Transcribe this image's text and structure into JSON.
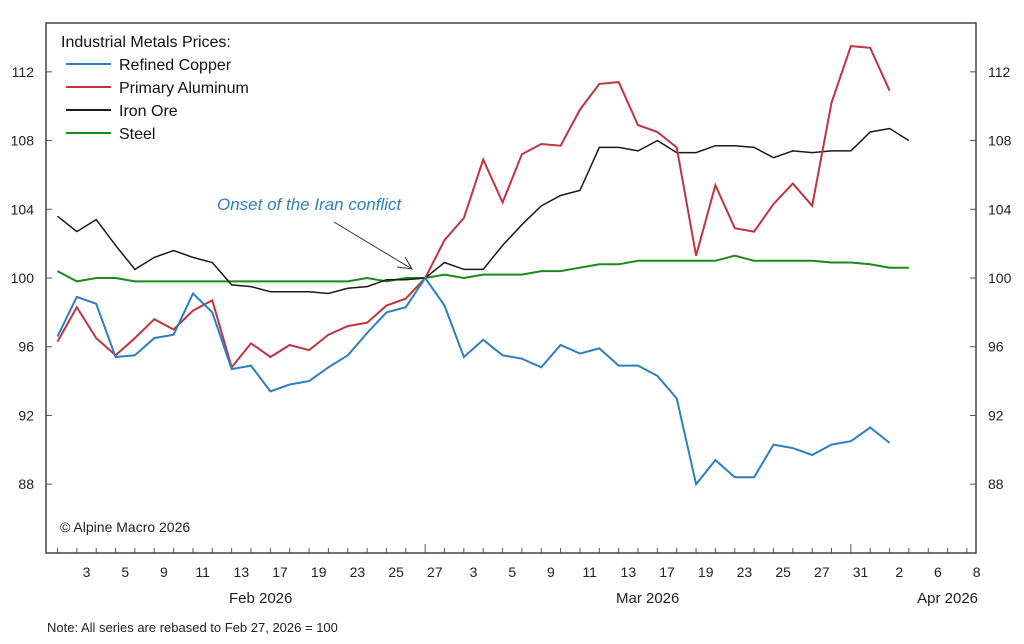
{
  "chart_data": {
    "type": "line",
    "title": "Industrial Metals Prices:",
    "annotation": "Onset of the Iran conflict",
    "annotation_point_index": 19,
    "copyright": "© Alpine Macro 2026",
    "note": "Note: All series are rebased to Feb 27, 2026 = 100",
    "xlabel": "",
    "ylabel": "",
    "ylim": [
      84.5,
      115
    ],
    "y_ticks": [
      88,
      92,
      96,
      100,
      104,
      108,
      112
    ],
    "x_slots": 48,
    "x_tick_labels": [
      {
        "slot": 1,
        "label": "3"
      },
      {
        "slot": 3,
        "label": "5"
      },
      {
        "slot": 5,
        "label": "9"
      },
      {
        "slot": 7,
        "label": "11"
      },
      {
        "slot": 9,
        "label": "13"
      },
      {
        "slot": 11,
        "label": "17"
      },
      {
        "slot": 13,
        "label": "19"
      },
      {
        "slot": 15,
        "label": "23"
      },
      {
        "slot": 17,
        "label": "25"
      },
      {
        "slot": 19,
        "label": "27"
      },
      {
        "slot": 21,
        "label": "3"
      },
      {
        "slot": 23,
        "label": "5"
      },
      {
        "slot": 25,
        "label": "9"
      },
      {
        "slot": 27,
        "label": "11"
      },
      {
        "slot": 29,
        "label": "13"
      },
      {
        "slot": 31,
        "label": "17"
      },
      {
        "slot": 33,
        "label": "19"
      },
      {
        "slot": 35,
        "label": "23"
      },
      {
        "slot": 37,
        "label": "25"
      },
      {
        "slot": 39,
        "label": "27"
      },
      {
        "slot": 41,
        "label": "31"
      },
      {
        "slot": 43,
        "label": "2"
      },
      {
        "slot": 45,
        "label": "6"
      },
      {
        "slot": 47,
        "label": "8"
      }
    ],
    "month_labels": [
      {
        "slot": 10,
        "label": "Feb 2026"
      },
      {
        "slot": 30,
        "label": "Mar 2026"
      },
      {
        "slot": 45.5,
        "label": "Apr 2026"
      }
    ],
    "series": [
      {
        "name": "Refined Copper",
        "color": "#2e7fbf",
        "values": [
          96.6,
          98.9,
          98.5,
          95.4,
          95.5,
          96.5,
          96.7,
          99.1,
          98.0,
          94.7,
          94.9,
          93.4,
          93.8,
          94.0,
          94.8,
          95.5,
          96.8,
          98.0,
          98.3,
          100.0,
          98.4,
          95.4,
          96.4,
          95.5,
          95.3,
          94.8,
          96.1,
          95.6,
          95.9,
          94.9,
          94.9,
          94.3,
          93.0,
          88.0,
          89.4,
          88.4,
          88.4,
          90.3,
          90.1,
          89.7,
          90.3,
          90.5,
          91.3,
          90.4
        ]
      },
      {
        "name": "Primary Aluminum",
        "color": "#c0343f",
        "values": [
          96.3,
          98.3,
          96.5,
          95.5,
          96.5,
          97.6,
          97.0,
          98.1,
          98.7,
          94.8,
          96.2,
          95.4,
          96.1,
          95.8,
          96.7,
          97.2,
          97.4,
          98.4,
          98.8,
          100.0,
          102.2,
          103.5,
          106.9,
          104.4,
          107.2,
          107.8,
          107.7,
          109.8,
          111.3,
          111.4,
          108.9,
          108.5,
          107.6,
          101.3,
          105.4,
          102.9,
          102.7,
          104.3,
          105.5,
          104.2,
          110.2,
          113.5,
          113.4,
          110.9
        ]
      },
      {
        "name": "Iron Ore",
        "color": "#1a1a1a",
        "values": [
          103.6,
          102.7,
          103.4,
          101.9,
          100.5,
          101.2,
          101.6,
          101.2,
          100.9,
          99.6,
          99.5,
          99.2,
          99.2,
          99.2,
          99.1,
          99.4,
          99.5,
          99.9,
          99.9,
          100.0,
          100.9,
          100.5,
          100.5,
          101.9,
          103.1,
          104.2,
          104.8,
          105.1,
          107.6,
          107.6,
          107.4,
          108.0,
          107.3,
          107.3,
          107.7,
          107.7,
          107.6,
          107.0,
          107.4,
          107.3,
          107.4,
          107.4,
          108.5,
          108.7,
          108.0
        ]
      },
      {
        "name": "Steel",
        "color": "#1a8a1a",
        "values": [
          100.4,
          99.8,
          100.0,
          100.0,
          99.8,
          99.8,
          99.8,
          99.8,
          99.8,
          99.8,
          99.8,
          99.8,
          99.8,
          99.8,
          99.8,
          99.8,
          100.0,
          99.8,
          100.0,
          100.0,
          100.2,
          100.0,
          100.2,
          100.2,
          100.2,
          100.4,
          100.4,
          100.6,
          100.8,
          100.8,
          101.0,
          101.0,
          101.0,
          101.0,
          101.0,
          101.3,
          101.0,
          101.0,
          101.0,
          101.0,
          100.9,
          100.9,
          100.8,
          100.6,
          100.6
        ]
      }
    ]
  }
}
